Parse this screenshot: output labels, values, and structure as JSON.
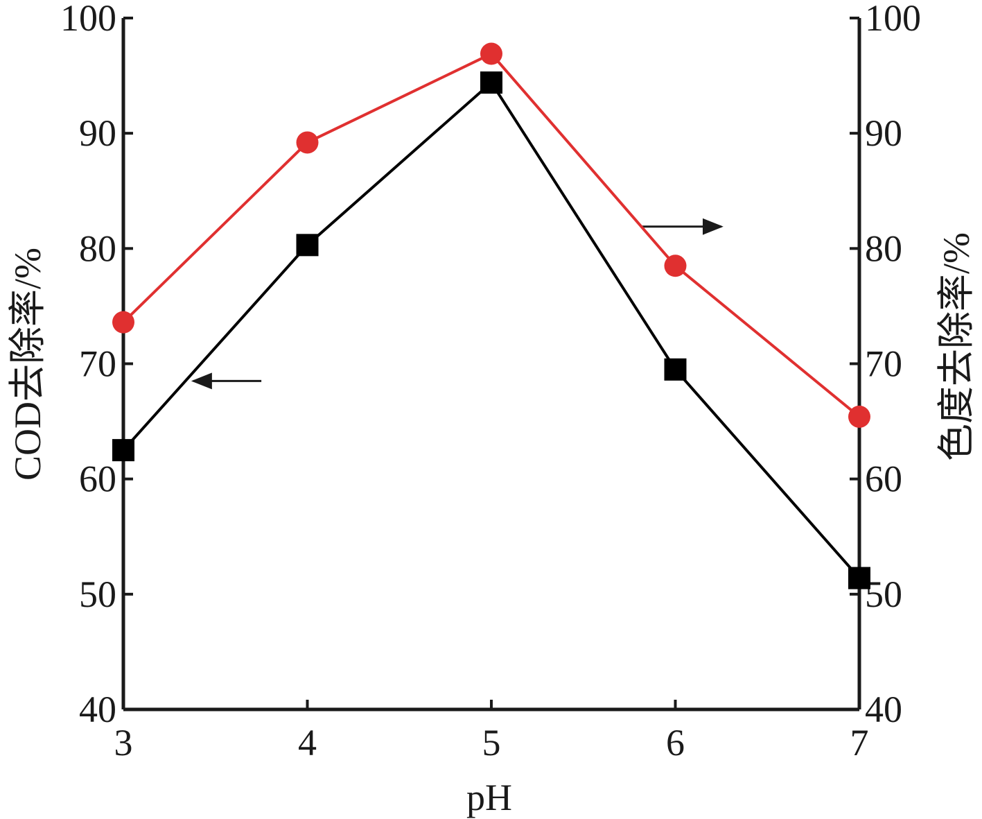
{
  "chart_data": {
    "type": "line",
    "xlabel": "pH",
    "ylabel_left": "COD去除率/%",
    "ylabel_right": "色度去除率/%",
    "x": [
      3,
      4,
      5,
      6,
      7
    ],
    "xlim": [
      3,
      7
    ],
    "ylim_left": [
      40,
      100
    ],
    "ylim_right": [
      40,
      100
    ],
    "x_ticks": [
      "3",
      "4",
      "5",
      "6",
      "7"
    ],
    "y_ticks_left": [
      "40",
      "50",
      "60",
      "70",
      "80",
      "90",
      "100"
    ],
    "y_ticks_right": [
      "40",
      "50",
      "60",
      "70",
      "80",
      "90",
      "100"
    ],
    "grid": false,
    "series": [
      {
        "axis": "left",
        "marker": "square",
        "color": "#000000",
        "values": [
          62.5,
          80.3,
          94.4,
          69.5,
          51.4
        ]
      },
      {
        "axis": "right",
        "marker": "circle",
        "color": "#e03030",
        "values": [
          73.6,
          89.2,
          96.9,
          78.5,
          65.4
        ]
      }
    ],
    "annotations": [
      {
        "type": "arrow",
        "points_to": "left-axis",
        "series": 0
      },
      {
        "type": "arrow",
        "points_to": "right-axis",
        "series": 1
      }
    ]
  }
}
